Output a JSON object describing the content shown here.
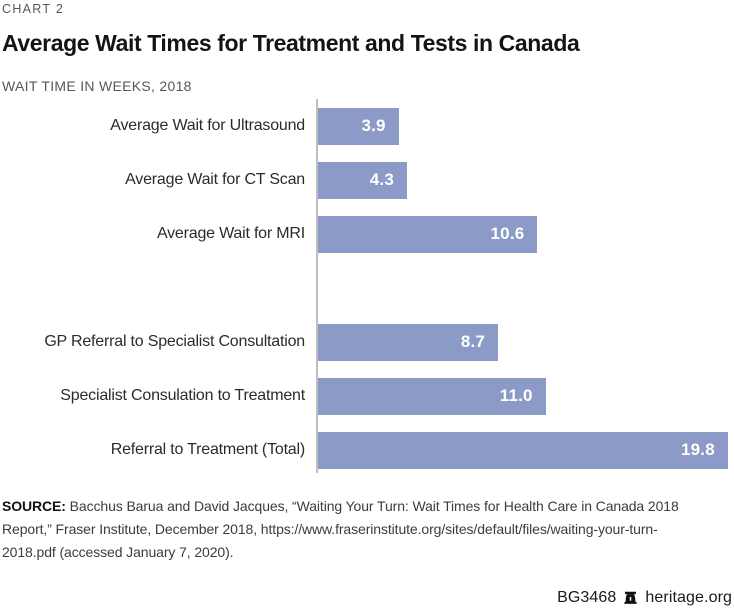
{
  "page": {
    "kicker": "CHART 2",
    "title": "Average Wait Times for Treatment and Tests in Canada",
    "subtitle": "WAIT TIME IN WEEKS, 2018"
  },
  "chart_data": {
    "type": "bar",
    "orientation": "horizontal",
    "title": "Average Wait Times for Treatment and Tests in Canada",
    "subtitle": "WAIT TIME IN WEEKS, 2018",
    "unit": "weeks",
    "year": "2018",
    "xlim": [
      0,
      20
    ],
    "grid": false,
    "legend": false,
    "bar_color": "#8c9ac7",
    "axis_line_color": "#bfbfbf",
    "value_label_color": "#ffffff",
    "categories": [
      "Average Wait for Ultrasound",
      "Average Wait for CT Scan",
      "Average Wait for MRI",
      "GP Referral to Specialist Consultation",
      "Specialist Consulation to Treatment",
      "Referral to Treatment (Total)"
    ],
    "values": [
      3.9,
      4.3,
      10.6,
      8.7,
      11.0,
      19.8
    ],
    "rows": [
      {
        "label": "Average Wait for Ultrasound",
        "value": 3.9
      },
      {
        "label": "Average Wait for CT Scan",
        "value": 4.3
      },
      {
        "label": "Average Wait for MRI",
        "value": 10.6
      },
      {
        "spacer": true
      },
      {
        "label": "GP Referral to Specialist Consultation",
        "value": 8.7
      },
      {
        "label": "Specialist Consulation to Treatment",
        "value": 11.0
      },
      {
        "label": "Referral to Treatment (Total)",
        "value": 19.8
      }
    ]
  },
  "source": {
    "label": "SOURCE:",
    "text": "Bacchus Barua and David Jacques, “Waiting Your Turn: Wait Times for Health Care in Canada 2018 Report,” Fraser Institute, December 2018, https://www.fraserinstitute.org/sites/default/files/waiting-your-turn-2018.pdf (accessed January 7, 2020)."
  },
  "footer": {
    "report_id": "BG3468",
    "site": "heritage.org",
    "icon": "liberty-bell-icon"
  }
}
